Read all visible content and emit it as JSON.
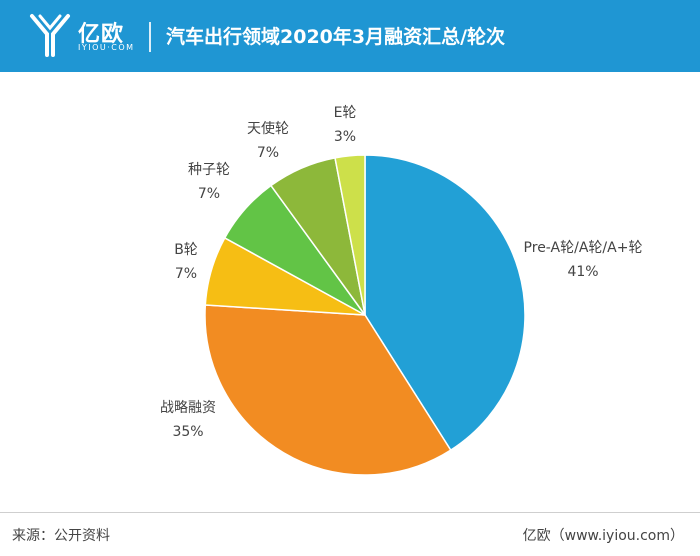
{
  "brand": {
    "name_cn": "亿欧",
    "name_en": "IYIOU·COM",
    "color": "#1f96d3"
  },
  "header": {
    "title": "汽车出行领域2020年3月融资汇总/轮次"
  },
  "chart_data": {
    "type": "pie",
    "title": "汽车出行领域2020年3月融资汇总/轮次",
    "slices": [
      {
        "name": "Pre-A轮/A轮/A+轮",
        "value": 41,
        "label": "41%",
        "color": "#22a0d6"
      },
      {
        "name": "战略融资",
        "value": 35,
        "label": "35%",
        "color": "#f28c22"
      },
      {
        "name": "B轮",
        "value": 7,
        "label": "7%",
        "color": "#f6be14"
      },
      {
        "name": "种子轮",
        "value": 7,
        "label": "7%",
        "color": "#62c446"
      },
      {
        "name": "天使轮",
        "value": 7,
        "label": "7%",
        "color": "#8db83a"
      },
      {
        "name": "E轮",
        "value": 3,
        "label": "3%",
        "color": "#cde04a"
      }
    ],
    "start": "12 o'clock",
    "direction": "clockwise",
    "legend": "none"
  },
  "footer": {
    "source": "来源：公开资料",
    "site": "亿欧（www.iyiou.com）"
  }
}
